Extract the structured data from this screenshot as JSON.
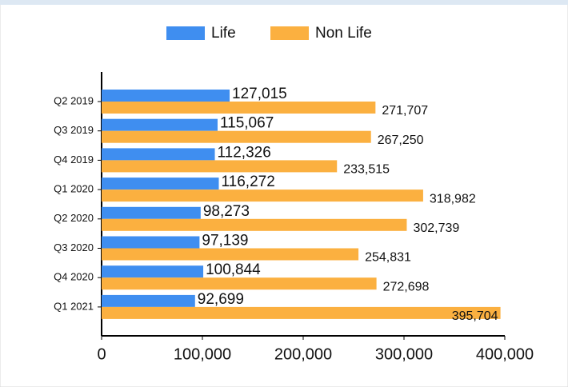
{
  "chart_data": {
    "type": "bar",
    "orientation": "horizontal",
    "categories": [
      "Q2 2019",
      "Q3 2019",
      "Q4 2019",
      "Q1 2020",
      "Q2 2020",
      "Q3 2020",
      "Q4 2020",
      "Q1 2021"
    ],
    "series": [
      {
        "name": "Life",
        "color": "#3f8ef0",
        "values": [
          127015,
          115067,
          112326,
          116272,
          98273,
          97139,
          100844,
          92699
        ],
        "value_labels": [
          "127,015",
          "115,067",
          "112,326",
          "116,272",
          "98,273",
          "97,139",
          "100,844",
          "92,699"
        ]
      },
      {
        "name": "Non Life",
        "color": "#fbb040",
        "values": [
          271707,
          267250,
          233515,
          318982,
          302739,
          254831,
          272698,
          395704
        ],
        "value_labels": [
          "271,707",
          "267,250",
          "233,515",
          "318,982",
          "302,739",
          "254,831",
          "272,698",
          "395,704"
        ]
      }
    ],
    "xlim": [
      0,
      400000
    ],
    "xticks": [
      0,
      {
        "value": 100000,
        "label": "100,000"
      },
      {
        "value": 200000,
        "label": "200,000"
      },
      {
        "value": 300000,
        "label": "300,000"
      },
      {
        "value": 400000,
        "label": "400,000"
      }
    ],
    "legend": "top"
  }
}
